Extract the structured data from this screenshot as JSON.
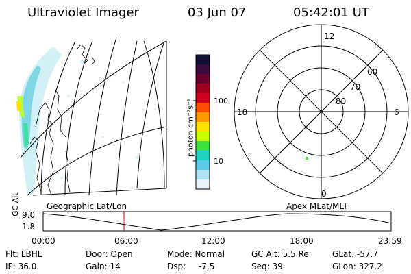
{
  "header": {
    "title": "Ultraviolet Imager",
    "date": "03 Jun 07",
    "time": "05:42:01 UT"
  },
  "geo_panel": {
    "caption": "Geographic Lat/Lon"
  },
  "colorbar": {
    "unit_label": "photon cm⁻²s⁻¹",
    "tick_100": "100",
    "tick_10": "10",
    "colors": [
      "#101030",
      "#3a0a3a",
      "#6a0030",
      "#a00020",
      "#d00020",
      "#ff5000",
      "#ff9a00",
      "#ffe000",
      "#c8ff00",
      "#40e040",
      "#20d0c0",
      "#60c8e8",
      "#b0e4f4",
      "#e8f4f8"
    ]
  },
  "polar_panel": {
    "caption": "Apex  MLat/MLT",
    "mlt_12": "12",
    "mlt_18": "18",
    "mlt_6": "6",
    "mlt_0": "0",
    "mlat_60": "60",
    "mlat_70": "70",
    "mlat_80": "80"
  },
  "altitude_strip": {
    "ylabel": "GC Alt",
    "ymax": "9.0",
    "ymin": "1.8",
    "ticks": [
      "00:00",
      "06:00",
      "12:00",
      "18:00",
      "23:59"
    ]
  },
  "footer": {
    "flt": "Flt: LBHL",
    "ip": "IP: 36.0",
    "door": "Door: Open",
    "gain": "Gain: 14",
    "mode": "Mode: Normal",
    "dsp_label": "Dsp:",
    "dsp_value": "-7.5",
    "gc_alt": "GC Alt: 5.5 Re",
    "seq": "Seq: 39",
    "glat": "GLat: -57.7",
    "glon": "GLon: 327.2"
  }
}
